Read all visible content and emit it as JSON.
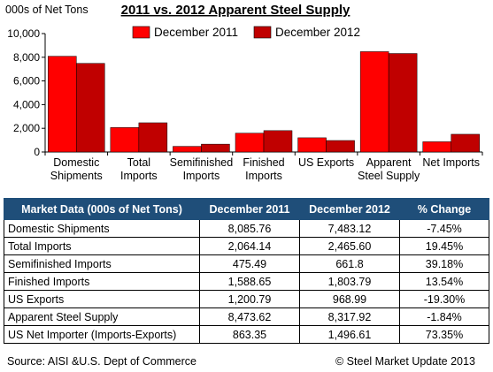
{
  "chart_data": {
    "type": "bar",
    "title": "2011 vs. 2012 Apparent Steel Supply",
    "ylabel": "000s of Net Tons",
    "ylim": [
      0,
      10000
    ],
    "yticks": [
      "0",
      "2,000",
      "4,000",
      "6,000",
      "8,000",
      "10,000"
    ],
    "categories": [
      [
        "Domestic",
        "Shipments"
      ],
      [
        "Total",
        "Imports"
      ],
      [
        "Semifinished",
        "Imports"
      ],
      [
        "Finished",
        "Imports"
      ],
      [
        "US Exports"
      ],
      [
        "Apparent",
        "Steel Supply"
      ],
      [
        "Net Imports"
      ]
    ],
    "series": [
      {
        "name": "December 2011",
        "color": "#ff0000",
        "values": [
          8085.76,
          2064.14,
          475.49,
          1588.65,
          1200.79,
          8473.62,
          863.35
        ]
      },
      {
        "name": "December 2012",
        "color": "#c00000",
        "values": [
          7483.12,
          2465.6,
          661.8,
          1803.79,
          968.99,
          8317.92,
          1496.61
        ]
      }
    ],
    "legend": "top-center",
    "grid": false
  },
  "table": {
    "headers": [
      "Market Data (000s of Net Tons)",
      "December 2011",
      "December 2012",
      "% Change"
    ],
    "rows": [
      [
        "Domestic Shipments",
        "8,085.76",
        "7,483.12",
        "-7.45%"
      ],
      [
        "Total Imports",
        "2,064.14",
        "2,465.60",
        "19.45%"
      ],
      [
        "Semifinished Imports",
        "475.49",
        "661.8",
        "39.18%"
      ],
      [
        "Finished Imports",
        "1,588.65",
        "1,803.79",
        "13.54%"
      ],
      [
        "US Exports",
        "1,200.79",
        "968.99",
        "-19.30%"
      ],
      [
        "Apparent Steel Supply",
        "8,473.62",
        "8,317.92",
        "-1.84%"
      ],
      [
        "US Net Importer (Imports-Exports)",
        "863.35",
        "1,496.61",
        "73.35%"
      ]
    ]
  },
  "footer": {
    "source": "Source:  AISI &U.S. Dept of Commerce",
    "copyright": "©   Steel Market Update 2013"
  }
}
